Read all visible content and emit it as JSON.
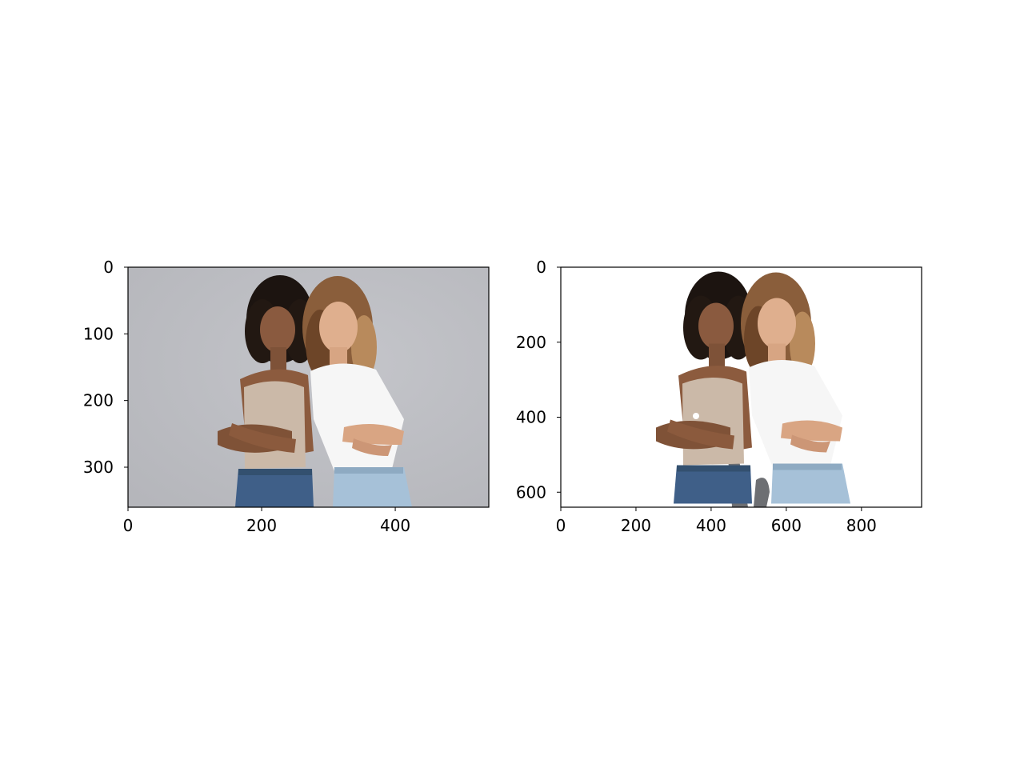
{
  "figure": {
    "panels": [
      {
        "name": "original-photo",
        "image_content": "two smiling women standing back to back with crossed arms, grey studio background",
        "background": "#bdbec3",
        "x_ticks": [
          0,
          200,
          400
        ],
        "y_ticks": [
          0,
          100,
          200,
          300
        ],
        "x_range": [
          0,
          540
        ],
        "y_range": [
          360,
          0
        ]
      },
      {
        "name": "background-removed-photo",
        "image_content": "same two women with the background removed, white background",
        "background": "#ffffff",
        "x_ticks": [
          0,
          200,
          400,
          600,
          800
        ],
        "y_ticks": [
          0,
          200,
          400,
          600
        ],
        "x_range": [
          0,
          960
        ],
        "y_range": [
          640,
          0
        ]
      }
    ]
  }
}
